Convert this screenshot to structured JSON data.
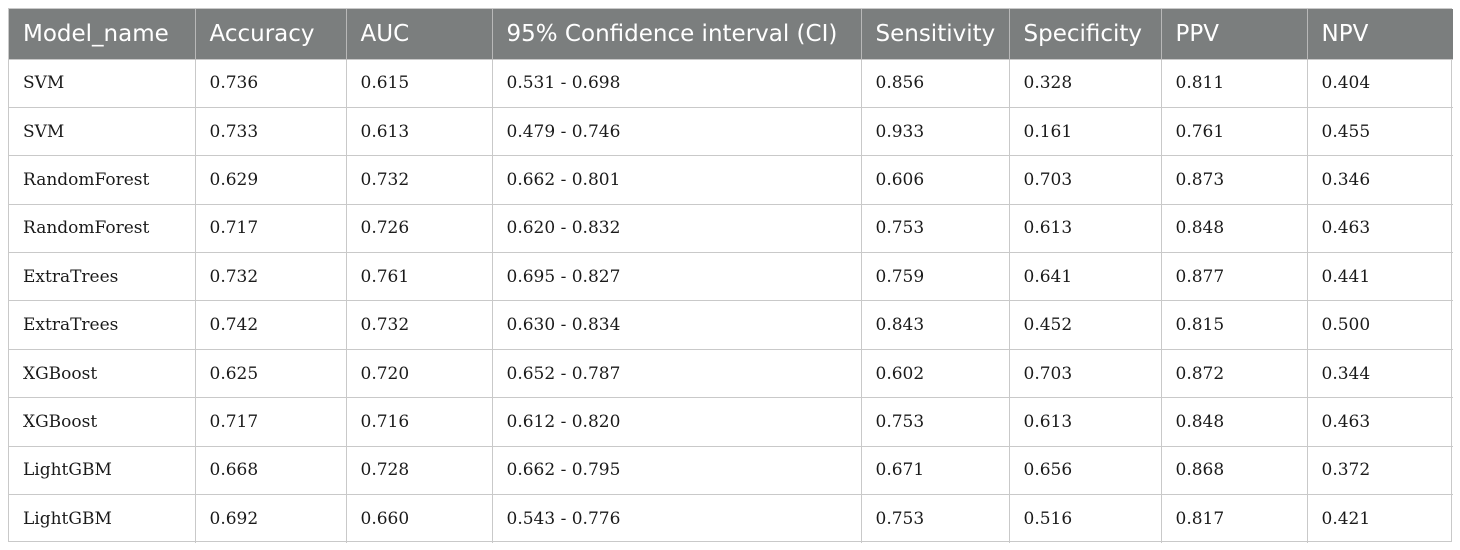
{
  "table": {
    "headers": [
      "Model_name",
      "Accuracy",
      "AUC",
      "95% Confidence interval (CI)",
      "Sensitivity",
      "Specificity",
      "PPV",
      "NPV"
    ],
    "rows": [
      [
        "SVM",
        "0.736",
        "0.615",
        "0.531 - 0.698",
        "0.856",
        "0.328",
        "0.811",
        "0.404"
      ],
      [
        "SVM",
        "0.733",
        "0.613",
        "0.479 - 0.746",
        "0.933",
        "0.161",
        "0.761",
        "0.455"
      ],
      [
        "RandomForest",
        "0.629",
        "0.732",
        "0.662 - 0.801",
        "0.606",
        "0.703",
        "0.873",
        "0.346"
      ],
      [
        "RandomForest",
        "0.717",
        "0.726",
        "0.620 - 0.832",
        "0.753",
        "0.613",
        "0.848",
        "0.463"
      ],
      [
        "ExtraTrees",
        "0.732",
        "0.761",
        "0.695 - 0.827",
        "0.759",
        "0.641",
        "0.877",
        "0.441"
      ],
      [
        "ExtraTrees",
        "0.742",
        "0.732",
        "0.630 - 0.834",
        "0.843",
        "0.452",
        "0.815",
        "0.500"
      ],
      [
        "XGBoost",
        "0.625",
        "0.720",
        "0.652 - 0.787",
        "0.602",
        "0.703",
        "0.872",
        "0.344"
      ],
      [
        "XGBoost",
        "0.717",
        "0.716",
        "0.612 - 0.820",
        "0.753",
        "0.613",
        "0.848",
        "0.463"
      ],
      [
        "LightGBM",
        "0.668",
        "0.728",
        "0.662 - 0.795",
        "0.671",
        "0.656",
        "0.868",
        "0.372"
      ],
      [
        "LightGBM",
        "0.692",
        "0.660",
        "0.543 - 0.776",
        "0.753",
        "0.516",
        "0.817",
        "0.421"
      ]
    ]
  },
  "colors": {
    "header_background": "#7b7e7e",
    "header_text": "#ffffff",
    "grid_lines": "#c9c9c9"
  }
}
